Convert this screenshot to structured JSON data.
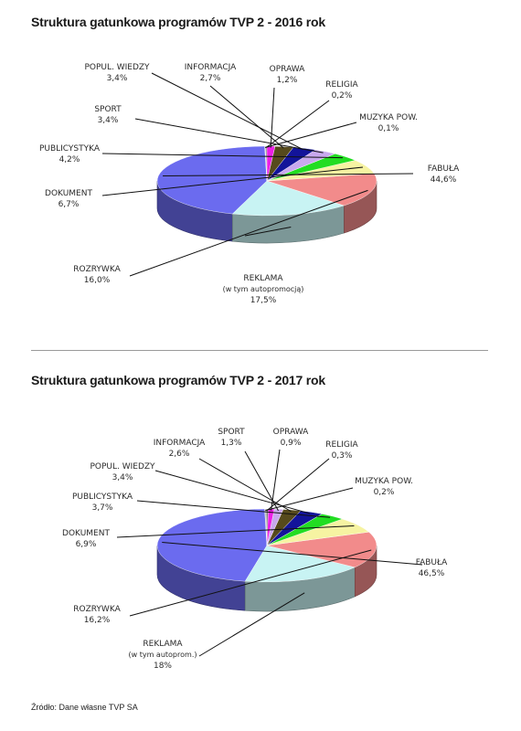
{
  "colors": {
    "FABUŁA": "#6b6bef",
    "REKLAMA": "#c8f3f3",
    "ROZRYWKA": "#f28b8b",
    "DOKUMENT": "#f6f3a2",
    "PUBLICYSTYKA": "#22dd22",
    "SPORT": "#c9a8ee",
    "POPUL. WIEDZY": "#13149a",
    "INFORMACJA": "#564a1c",
    "OPRAWA": "#ee1ee7",
    "RELIGIA": "#777777",
    "MUZYKA POW.": "#c0c0c0"
  },
  "chart_data": [
    {
      "type": "pie",
      "title": "Struktura gatunkowa programów TVP 2 - 2016 rok",
      "slices": [
        {
          "label": "FABUŁA",
          "value": 44.6,
          "value_text": "44,6%"
        },
        {
          "label": "REKLAMA",
          "sublabel": "(w tym autopromocją)",
          "value": 17.5,
          "value_text": "17,5%"
        },
        {
          "label": "ROZRYWKA",
          "value": 16.0,
          "value_text": "16,0%"
        },
        {
          "label": "DOKUMENT",
          "value": 6.7,
          "value_text": "6,7%"
        },
        {
          "label": "PUBLICYSTYKA",
          "value": 4.2,
          "value_text": "4,2%"
        },
        {
          "label": "SPORT",
          "value": 3.4,
          "value_text": "3,4%"
        },
        {
          "label": "POPUL. WIEDZY",
          "value": 3.4,
          "value_text": "3,4%"
        },
        {
          "label": "INFORMACJA",
          "value": 2.7,
          "value_text": "2,7%"
        },
        {
          "label": "OPRAWA",
          "value": 1.2,
          "value_text": "1,2%"
        },
        {
          "label": "RELIGIA",
          "value": 0.2,
          "value_text": "0,2%"
        },
        {
          "label": "MUZYKA POW.",
          "value": 0.1,
          "value_text": "0,1%"
        }
      ]
    },
    {
      "type": "pie",
      "title": "Struktura gatunkowa programów TVP 2 - 2017 rok",
      "slices": [
        {
          "label": "FABUŁA",
          "value": 46.5,
          "value_text": "46,5%"
        },
        {
          "label": "REKLAMA",
          "sublabel": "(w tym autoprom.)",
          "value": 18,
          "value_text": "18%"
        },
        {
          "label": "ROZRYWKA",
          "value": 16.2,
          "value_text": "16,2%"
        },
        {
          "label": "DOKUMENT",
          "value": 6.9,
          "value_text": "6,9%"
        },
        {
          "label": "PUBLICYSTYKA",
          "value": 3.7,
          "value_text": "3,7%"
        },
        {
          "label": "POPUL. WIEDZY",
          "value": 3.4,
          "value_text": "3,4%"
        },
        {
          "label": "INFORMACJA",
          "value": 2.6,
          "value_text": "2,6%"
        },
        {
          "label": "SPORT",
          "value": 1.3,
          "value_text": "1,3%"
        },
        {
          "label": "OPRAWA",
          "value": 0.9,
          "value_text": "0,9%"
        },
        {
          "label": "RELIGIA",
          "value": 0.3,
          "value_text": "0,3%"
        },
        {
          "label": "MUZYKA POW.",
          "value": 0.2,
          "value_text": "0,2%"
        }
      ]
    }
  ],
  "source": "Źródło: Dane własne TVP SA"
}
